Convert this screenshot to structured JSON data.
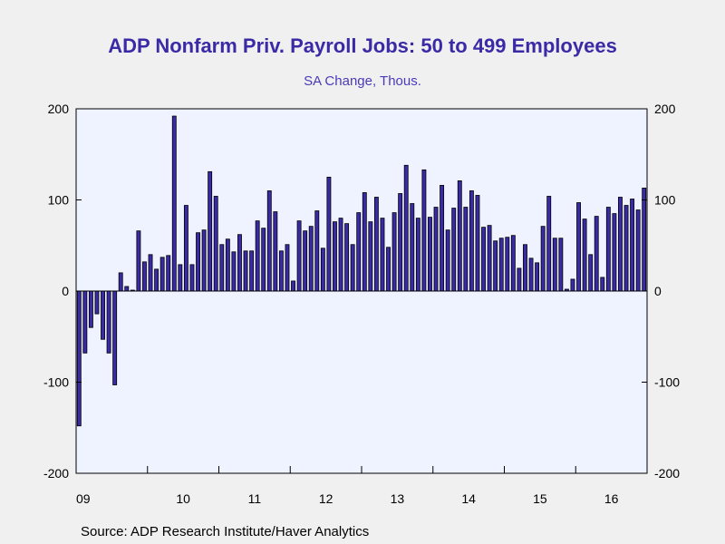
{
  "chart_data": {
    "type": "bar",
    "title": "ADP Nonfarm Priv. Payroll Jobs: 50 to 499 Employees",
    "subtitle": "SA Change, Thous.",
    "source": "Source:  ADP Research Institute/Haver Analytics",
    "ylim": [
      -200,
      200
    ],
    "yticks": [
      -200,
      -100,
      0,
      100,
      200
    ],
    "ytick_labels": [
      "-200",
      "-100",
      "0",
      "100",
      "200"
    ],
    "x_start": "2009-01",
    "xtick_labels": [
      "09",
      "10",
      "11",
      "12",
      "13",
      "14",
      "15",
      "16"
    ],
    "grid": false,
    "bar_color": "#3a2aa6",
    "series": [
      {
        "values": [
          -148,
          -68,
          -40,
          -25,
          -53,
          -68,
          -103,
          20,
          5,
          1,
          66,
          32,
          40,
          24,
          37,
          39,
          192,
          29,
          94,
          29,
          64,
          67,
          131,
          104,
          51,
          57,
          43,
          62,
          44,
          44,
          77,
          69,
          110,
          87,
          44,
          51,
          11,
          77,
          66,
          71,
          88,
          47,
          125,
          76,
          80,
          74,
          51,
          86,
          108,
          76,
          103,
          80,
          48,
          86,
          107,
          138,
          96,
          80,
          133,
          81,
          92,
          116,
          67,
          91,
          121,
          92,
          110,
          105,
          70,
          72,
          55,
          58,
          59,
          61,
          25,
          51,
          36,
          31,
          71,
          104,
          58,
          58,
          2,
          13,
          97,
          79,
          40,
          82,
          15,
          92,
          85,
          103,
          94,
          101,
          89,
          113
        ]
      }
    ]
  }
}
